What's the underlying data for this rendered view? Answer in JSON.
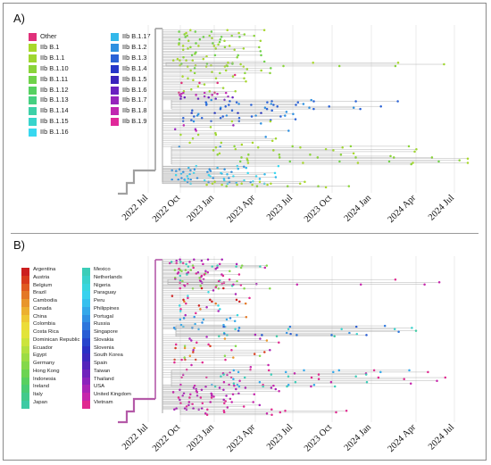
{
  "panels": [
    {
      "label": "A)",
      "legend": [
        {
          "label": "Other",
          "color": "#e0307a"
        },
        {
          "label": "IIb B.1",
          "color": "#a8d82a"
        },
        {
          "label": "IIb B.1.1",
          "color": "#9fd630"
        },
        {
          "label": "IIb B.1.10",
          "color": "#8ad43a"
        },
        {
          "label": "IIb B.1.11",
          "color": "#6fd24a"
        },
        {
          "label": "IIb B.1.12",
          "color": "#55d060"
        },
        {
          "label": "IIb B.1.13",
          "color": "#45cf80"
        },
        {
          "label": "IIb B.1.14",
          "color": "#3dd0a8"
        },
        {
          "label": "IIb B.1.15",
          "color": "#38d4cc"
        },
        {
          "label": "IIb B.1.16",
          "color": "#38d8f0"
        },
        {
          "label": "IIb B.1.17",
          "color": "#33b8ea"
        },
        {
          "label": "IIb B.1.2",
          "color": "#2e90e0"
        },
        {
          "label": "IIb B.1.3",
          "color": "#2a62d6"
        },
        {
          "label": "IIb B.1.4",
          "color": "#2636c8"
        },
        {
          "label": "IIb B.1.5",
          "color": "#3a24bc"
        },
        {
          "label": "IIb B.1.6",
          "color": "#6a22c0"
        },
        {
          "label": "IIb B.1.7",
          "color": "#9624bc"
        },
        {
          "label": "IIb B.1.8",
          "color": "#c026b0"
        },
        {
          "label": "IIb B.1.9",
          "color": "#e0289a"
        }
      ]
    },
    {
      "label": "B)",
      "legend": [
        {
          "label": "Argentina",
          "color": "#cc1f1f"
        },
        {
          "label": "Austria",
          "color": "#d83a1c"
        },
        {
          "label": "Belgium",
          "color": "#e05a20"
        },
        {
          "label": "Brazil",
          "color": "#e47826"
        },
        {
          "label": "Cambodia",
          "color": "#e8962c"
        },
        {
          "label": "Canada",
          "color": "#ecb030"
        },
        {
          "label": "China",
          "color": "#eec834"
        },
        {
          "label": "Colombia",
          "color": "#ecdc38"
        },
        {
          "label": "Costa Rica",
          "color": "#e2e43a"
        },
        {
          "label": "Dominican Republic",
          "color": "#cce43c"
        },
        {
          "label": "Ecuador",
          "color": "#b4e040"
        },
        {
          "label": "Egypt",
          "color": "#9cdc44"
        },
        {
          "label": "Germany",
          "color": "#84d84a"
        },
        {
          "label": "Hong Kong",
          "color": "#6cd452"
        },
        {
          "label": "Indonesia",
          "color": "#58d060"
        },
        {
          "label": "Ireland",
          "color": "#4acc74"
        },
        {
          "label": "Italy",
          "color": "#42ca8c"
        },
        {
          "label": "Japan",
          "color": "#3ecaa4"
        },
        {
          "label": "Mexico",
          "color": "#3ccdb8"
        },
        {
          "label": "Netherlands",
          "color": "#3ad2cc"
        },
        {
          "label": "Nigeria",
          "color": "#38d6de"
        },
        {
          "label": "Paraguay",
          "color": "#38d2ee"
        },
        {
          "label": "Peru",
          "color": "#36c0ee"
        },
        {
          "label": "Philippines",
          "color": "#34a8ea"
        },
        {
          "label": "Portugal",
          "color": "#3090e4"
        },
        {
          "label": "Russia",
          "color": "#2c76dc"
        },
        {
          "label": "Singapore",
          "color": "#285cd4"
        },
        {
          "label": "Slovakia",
          "color": "#2644cc"
        },
        {
          "label": "Slovenia",
          "color": "#2a30c4"
        },
        {
          "label": "South Korea",
          "color": "#3c28be"
        },
        {
          "label": "Spain",
          "color": "#5424bc"
        },
        {
          "label": "Taiwan",
          "color": "#7022bc"
        },
        {
          "label": "Thailand",
          "color": "#8c22bc"
        },
        {
          "label": "USA",
          "color": "#aa24b6"
        },
        {
          "label": "United Kingdom",
          "color": "#c626ac"
        },
        {
          "label": "Vietnam",
          "color": "#e02a90"
        }
      ]
    }
  ],
  "time_axis": [
    "2022 Jul",
    "2022 Oct",
    "2023 Jan",
    "2023 Apr",
    "2023 Jul",
    "2023 Oct",
    "2024 Jan",
    "2024 Apr",
    "2024 Jul"
  ],
  "colors": {
    "branch": "#b4b4b4",
    "root_branch": "#a0a0a0",
    "grid": "#e6e6e6"
  }
}
